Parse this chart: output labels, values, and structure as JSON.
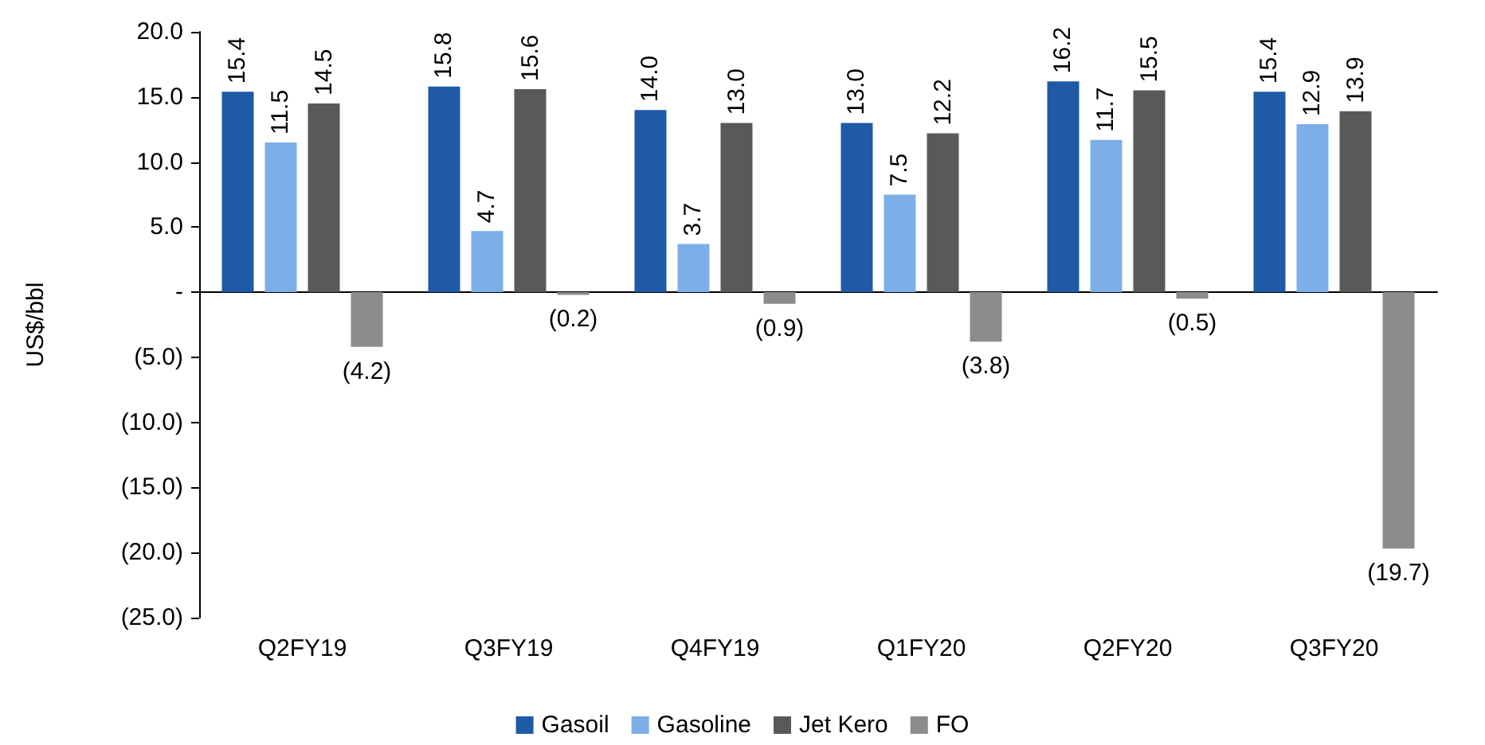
{
  "chart_data": {
    "type": "bar",
    "ylabel": "US$/bbl",
    "categories": [
      "Q2FY19",
      "Q3FY19",
      "Q4FY19",
      "Q1FY20",
      "Q2FY20",
      "Q3FY20"
    ],
    "series": [
      {
        "name": "Gasoil",
        "color": "#1f5aa6",
        "values": [
          15.4,
          15.8,
          14.0,
          13.0,
          16.2,
          15.4
        ],
        "value_labels": [
          "15.4",
          "15.8",
          "14.0",
          "13.0",
          "16.2",
          "15.4"
        ]
      },
      {
        "name": "Gasoline",
        "color": "#7eaee8",
        "values": [
          11.5,
          4.7,
          3.7,
          7.5,
          11.7,
          12.9
        ],
        "value_labels": [
          "11.5",
          "4.7",
          "3.7",
          "7.5",
          "11.7",
          "12.9"
        ]
      },
      {
        "name": "Jet Kero",
        "color": "#595959",
        "values": [
          14.5,
          15.6,
          13.0,
          12.2,
          15.5,
          13.9
        ],
        "value_labels": [
          "14.5",
          "15.6",
          "13.0",
          "12.2",
          "15.5",
          "13.9"
        ]
      },
      {
        "name": "FO",
        "color": "#8c8c8c",
        "values": [
          -4.2,
          -0.2,
          -0.9,
          -3.8,
          -0.5,
          -19.7
        ],
        "value_labels": [
          "(4.2)",
          "(0.2)",
          "(0.9)",
          "(3.8)",
          "(0.5)",
          "(19.7)"
        ]
      }
    ],
    "ylim": [
      -25,
      20
    ],
    "yticks": [
      {
        "value": -25,
        "label": "(25.0)"
      },
      {
        "value": -20,
        "label": "(20.0)"
      },
      {
        "value": -15,
        "label": "(15.0)"
      },
      {
        "value": -10,
        "label": "(10.0)"
      },
      {
        "value": -5,
        "label": "(5.0)"
      },
      {
        "value": 0,
        "label": "-"
      },
      {
        "value": 5,
        "label": "5.0"
      },
      {
        "value": 10,
        "label": "10.0"
      },
      {
        "value": 15,
        "label": "15.0"
      },
      {
        "value": 20,
        "label": "20.0"
      }
    ],
    "legend": "bottom"
  }
}
